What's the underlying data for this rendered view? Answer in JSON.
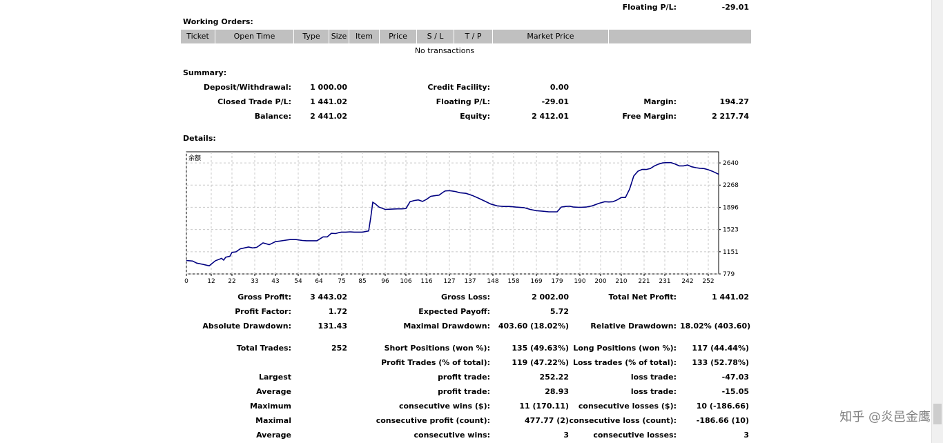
{
  "header": {
    "floating_pl_label": "Floating P/L:",
    "floating_pl_value": "-29.01"
  },
  "working_orders": {
    "title": "Working Orders:",
    "columns": [
      "Ticket",
      "Open Time",
      "Type",
      "Size",
      "Item",
      "Price",
      "S / L",
      "T / P",
      "Market Price",
      ""
    ],
    "empty_text": "No transactions"
  },
  "summary": {
    "title": "Summary:",
    "rows": [
      [
        {
          "l": "Deposit/Withdrawal:",
          "v": "1 000.00"
        },
        {
          "l": "Credit Facility:",
          "v": "0.00"
        },
        {
          "l": "",
          "v": ""
        }
      ],
      [
        {
          "l": "Closed Trade P/L:",
          "v": "1 441.02"
        },
        {
          "l": "Floating P/L:",
          "v": "-29.01"
        },
        {
          "l": "Margin:",
          "v": "194.27"
        }
      ],
      [
        {
          "l": "Balance:",
          "v": "2 441.02"
        },
        {
          "l": "Equity:",
          "v": "2 412.01"
        },
        {
          "l": "Free Margin:",
          "v": "2 217.74"
        }
      ]
    ]
  },
  "details": {
    "title": "Details:",
    "rows": [
      [
        {
          "l": "Gross Profit:",
          "v": "3 443.02"
        },
        {
          "l": "Gross Loss:",
          "v": "2 002.00"
        },
        {
          "l": "Total Net Profit:",
          "v": "1 441.02"
        }
      ],
      [
        {
          "l": "Profit Factor:",
          "v": "1.72"
        },
        {
          "l": "Expected Payoff:",
          "v": "5.72"
        },
        {
          "l": "",
          "v": ""
        }
      ],
      [
        {
          "l": "Absolute Drawdown:",
          "v": "131.43"
        },
        {
          "l": "Maximal Drawdown:",
          "v": "403.60 (18.02%)"
        },
        {
          "l": "Relative Drawdown:",
          "v": "18.02% (403.60)"
        }
      ],
      [
        {
          "l": "Total Trades:",
          "v": "252"
        },
        {
          "l": "Short Positions (won %):",
          "v": "135 (49.63%)"
        },
        {
          "l": "Long Positions (won %):",
          "v": "117 (44.44%)"
        }
      ],
      [
        {
          "l": "",
          "v": ""
        },
        {
          "l": "Profit Trades (% of total):",
          "v": "119 (47.22%)"
        },
        {
          "l": "Loss trades (% of total):",
          "v": "133 (52.78%)"
        }
      ],
      [
        {
          "l": "Largest",
          "v": ""
        },
        {
          "l": "profit trade:",
          "v": "252.22"
        },
        {
          "l": "loss trade:",
          "v": "-47.03"
        }
      ],
      [
        {
          "l": "Average",
          "v": ""
        },
        {
          "l": "profit trade:",
          "v": "28.93"
        },
        {
          "l": "loss trade:",
          "v": "-15.05"
        }
      ],
      [
        {
          "l": "Maximum",
          "v": ""
        },
        {
          "l": "consecutive wins ($):",
          "v": "11 (170.11)"
        },
        {
          "l": "consecutive losses ($):",
          "v": "10 (-186.66)"
        }
      ],
      [
        {
          "l": "Maximal",
          "v": ""
        },
        {
          "l": "consecutive profit (count):",
          "v": "477.77 (2)"
        },
        {
          "l": "consecutive loss (count):",
          "v": "-186.66 (10)"
        }
      ],
      [
        {
          "l": "Average",
          "v": ""
        },
        {
          "l": "consecutive wins:",
          "v": "3"
        },
        {
          "l": "consecutive losses:",
          "v": "3"
        }
      ]
    ]
  },
  "chart_data": {
    "type": "line",
    "title": "余额",
    "xlabel": "",
    "ylabel": "",
    "xlim": [
      0,
      257
    ],
    "ylim": [
      779,
      2826
    ],
    "x_ticks": [
      0,
      12,
      22,
      33,
      43,
      54,
      64,
      75,
      85,
      96,
      106,
      116,
      127,
      137,
      148,
      158,
      169,
      179,
      190,
      200,
      210,
      221,
      231,
      242,
      252
    ],
    "y_ticks": [
      779,
      1151,
      1523,
      1896,
      2268,
      2640
    ],
    "grid": true,
    "color": "#000080",
    "series": [
      {
        "name": "",
        "x": [
          0,
          3,
          5,
          8,
          11,
          14,
          17,
          18,
          19,
          21,
          22,
          24,
          26,
          28,
          30,
          32,
          34,
          37,
          40,
          41,
          43,
          45,
          47,
          50,
          53,
          56,
          58,
          60,
          63,
          66,
          68,
          70,
          72,
          74,
          75,
          77,
          79,
          81,
          83,
          85,
          88,
          89,
          90,
          91,
          93,
          96,
          99,
          102,
          104,
          106,
          108,
          110,
          112,
          114,
          116,
          118,
          120,
          122,
          124,
          125,
          127,
          128,
          130,
          132,
          135,
          138,
          141,
          144,
          147,
          150,
          153,
          156,
          159,
          163,
          166,
          169,
          172,
          175,
          177,
          179,
          181,
          183,
          185,
          187,
          190,
          193,
          196,
          199,
          202,
          204,
          206,
          208,
          210,
          212,
          214,
          216,
          218,
          220,
          222,
          224,
          226,
          228,
          230,
          232,
          234,
          236,
          238,
          240,
          242,
          244,
          246,
          248,
          250,
          252,
          254,
          257
        ],
        "y": [
          1005,
          995,
          960,
          940,
          915,
          1000,
          1040,
          1010,
          1060,
          1075,
          1140,
          1150,
          1200,
          1215,
          1230,
          1215,
          1225,
          1300,
          1270,
          1285,
          1320,
          1330,
          1340,
          1355,
          1355,
          1340,
          1335,
          1335,
          1335,
          1400,
          1400,
          1460,
          1455,
          1475,
          1480,
          1480,
          1485,
          1480,
          1480,
          1480,
          1500,
          1720,
          1980,
          1960,
          1900,
          1860,
          1865,
          1870,
          1870,
          1875,
          1990,
          2010,
          2020,
          1995,
          2030,
          2080,
          2090,
          2100,
          2150,
          2170,
          2175,
          2170,
          2160,
          2140,
          2130,
          2095,
          2050,
          2000,
          1950,
          1920,
          1910,
          1910,
          1900,
          1890,
          1860,
          1840,
          1830,
          1820,
          1820,
          1820,
          1900,
          1910,
          1915,
          1900,
          1895,
          1900,
          1920,
          1960,
          1990,
          1985,
          1990,
          2020,
          2060,
          2060,
          2200,
          2420,
          2500,
          2530,
          2530,
          2545,
          2590,
          2620,
          2640,
          2645,
          2645,
          2620,
          2590,
          2590,
          2605,
          2575,
          2560,
          2550,
          2545,
          2525,
          2500,
          2450
        ]
      }
    ]
  },
  "watermark": "知乎 @炎邑金鹰"
}
